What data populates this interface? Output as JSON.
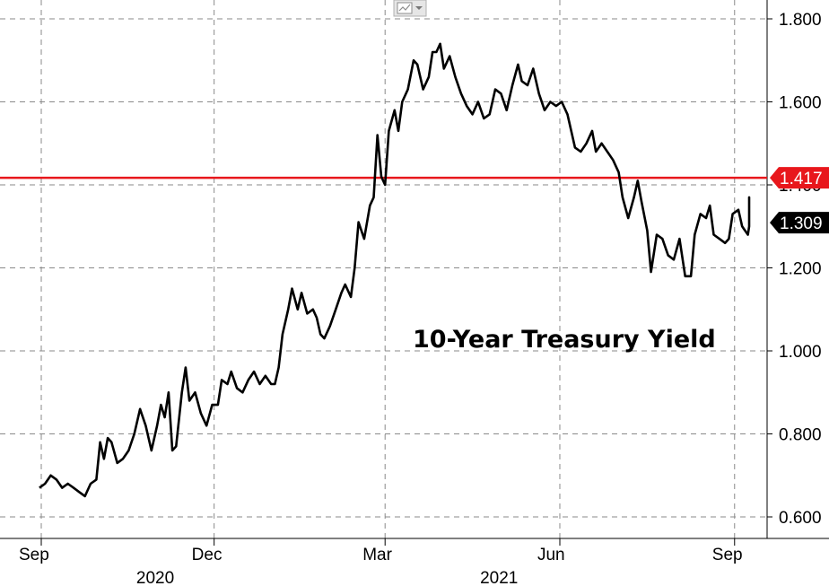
{
  "chart_data": {
    "type": "line",
    "title": "",
    "annotation": "10-Year Treasury Yield",
    "xlabel": "",
    "ylabel": "",
    "x_start": "2020-09-01",
    "x_end": "2021-09-03",
    "ylim": [
      0.55,
      1.85
    ],
    "y_ticks": [
      0.6,
      0.8,
      1.0,
      1.2,
      1.4,
      1.6,
      1.8
    ],
    "y_tick_labels": [
      "0.600",
      "0.800",
      "1.000",
      "1.200",
      "1.400",
      "1.600",
      "1.800"
    ],
    "x_ticks": [
      {
        "date": "2020-09-01",
        "label": "Sep"
      },
      {
        "date": "2020-12-01",
        "label": "Dec"
      },
      {
        "date": "2021-03-01",
        "label": "Mar"
      },
      {
        "date": "2021-06-01",
        "label": "Jun"
      },
      {
        "date": "2021-09-01",
        "label": "Sep"
      }
    ],
    "year_labels": [
      {
        "date": "2020-10-31",
        "label": "2020"
      },
      {
        "date": "2021-04-30",
        "label": "2021"
      }
    ],
    "grid": true,
    "axis_side": "right",
    "reference_line": {
      "value": 1.417,
      "label": "1.417",
      "color": "#e8171c"
    },
    "last_value": {
      "value": 1.309,
      "label": "1.309"
    },
    "colors": {
      "line": "#000000",
      "grid": "#8a8a8a",
      "reference": "#e8171c"
    },
    "series": [
      {
        "points": [
          [
            "2020-08-31",
            0.67
          ],
          [
            "2020-09-03",
            0.68
          ],
          [
            "2020-09-06",
            0.7
          ],
          [
            "2020-09-09",
            0.69
          ],
          [
            "2020-09-12",
            0.67
          ],
          [
            "2020-09-15",
            0.68
          ],
          [
            "2020-09-18",
            0.67
          ],
          [
            "2020-09-21",
            0.66
          ],
          [
            "2020-09-24",
            0.65
          ],
          [
            "2020-09-27",
            0.68
          ],
          [
            "2020-09-30",
            0.69
          ],
          [
            "2020-10-02",
            0.78
          ],
          [
            "2020-10-04",
            0.74
          ],
          [
            "2020-10-06",
            0.79
          ],
          [
            "2020-10-08",
            0.78
          ],
          [
            "2020-10-11",
            0.73
          ],
          [
            "2020-10-14",
            0.74
          ],
          [
            "2020-10-17",
            0.76
          ],
          [
            "2020-10-20",
            0.8
          ],
          [
            "2020-10-23",
            0.86
          ],
          [
            "2020-10-26",
            0.82
          ],
          [
            "2020-10-29",
            0.76
          ],
          [
            "2020-11-01",
            0.82
          ],
          [
            "2020-11-03",
            0.87
          ],
          [
            "2020-11-05",
            0.84
          ],
          [
            "2020-11-07",
            0.9
          ],
          [
            "2020-11-09",
            0.76
          ],
          [
            "2020-11-11",
            0.77
          ],
          [
            "2020-11-14",
            0.9
          ],
          [
            "2020-11-16",
            0.96
          ],
          [
            "2020-11-18",
            0.88
          ],
          [
            "2020-11-21",
            0.9
          ],
          [
            "2020-11-24",
            0.85
          ],
          [
            "2020-11-27",
            0.82
          ],
          [
            "2020-11-30",
            0.87
          ],
          [
            "2020-12-03",
            0.87
          ],
          [
            "2020-12-05",
            0.93
          ],
          [
            "2020-12-08",
            0.92
          ],
          [
            "2020-12-10",
            0.95
          ],
          [
            "2020-12-13",
            0.91
          ],
          [
            "2020-12-16",
            0.9
          ],
          [
            "2020-12-19",
            0.93
          ],
          [
            "2020-12-22",
            0.95
          ],
          [
            "2020-12-25",
            0.92
          ],
          [
            "2020-12-28",
            0.94
          ],
          [
            "2020-12-31",
            0.92
          ],
          [
            "2021-01-02",
            0.92
          ],
          [
            "2021-01-04",
            0.96
          ],
          [
            "2021-01-06",
            1.04
          ],
          [
            "2021-01-09",
            1.1
          ],
          [
            "2021-01-11",
            1.15
          ],
          [
            "2021-01-14",
            1.1
          ],
          [
            "2021-01-16",
            1.14
          ],
          [
            "2021-01-19",
            1.09
          ],
          [
            "2021-01-22",
            1.1
          ],
          [
            "2021-01-24",
            1.08
          ],
          [
            "2021-01-26",
            1.04
          ],
          [
            "2021-01-28",
            1.03
          ],
          [
            "2021-01-31",
            1.06
          ],
          [
            "2021-02-03",
            1.1
          ],
          [
            "2021-02-06",
            1.14
          ],
          [
            "2021-02-08",
            1.16
          ],
          [
            "2021-02-11",
            1.13
          ],
          [
            "2021-02-13",
            1.2
          ],
          [
            "2021-02-15",
            1.31
          ],
          [
            "2021-02-18",
            1.27
          ],
          [
            "2021-02-21",
            1.35
          ],
          [
            "2021-02-23",
            1.37
          ],
          [
            "2021-02-25",
            1.52
          ],
          [
            "2021-02-27",
            1.42
          ],
          [
            "2021-03-01",
            1.4
          ],
          [
            "2021-03-03",
            1.53
          ],
          [
            "2021-03-06",
            1.58
          ],
          [
            "2021-03-08",
            1.53
          ],
          [
            "2021-03-10",
            1.6
          ],
          [
            "2021-03-13",
            1.63
          ],
          [
            "2021-03-16",
            1.7
          ],
          [
            "2021-03-18",
            1.69
          ],
          [
            "2021-03-21",
            1.63
          ],
          [
            "2021-03-24",
            1.66
          ],
          [
            "2021-03-26",
            1.72
          ],
          [
            "2021-03-28",
            1.72
          ],
          [
            "2021-03-30",
            1.74
          ],
          [
            "2021-04-01",
            1.68
          ],
          [
            "2021-04-04",
            1.71
          ],
          [
            "2021-04-07",
            1.66
          ],
          [
            "2021-04-10",
            1.62
          ],
          [
            "2021-04-13",
            1.59
          ],
          [
            "2021-04-16",
            1.57
          ],
          [
            "2021-04-19",
            1.6
          ],
          [
            "2021-04-22",
            1.56
          ],
          [
            "2021-04-25",
            1.57
          ],
          [
            "2021-04-28",
            1.63
          ],
          [
            "2021-05-01",
            1.62
          ],
          [
            "2021-05-04",
            1.58
          ],
          [
            "2021-05-07",
            1.64
          ],
          [
            "2021-05-10",
            1.69
          ],
          [
            "2021-05-12",
            1.65
          ],
          [
            "2021-05-15",
            1.64
          ],
          [
            "2021-05-18",
            1.68
          ],
          [
            "2021-05-21",
            1.62
          ],
          [
            "2021-05-24",
            1.58
          ],
          [
            "2021-05-27",
            1.6
          ],
          [
            "2021-05-30",
            1.59
          ],
          [
            "2021-06-02",
            1.6
          ],
          [
            "2021-06-05",
            1.57
          ],
          [
            "2021-06-07",
            1.53
          ],
          [
            "2021-06-09",
            1.49
          ],
          [
            "2021-06-12",
            1.48
          ],
          [
            "2021-06-15",
            1.5
          ],
          [
            "2021-06-18",
            1.53
          ],
          [
            "2021-06-20",
            1.48
          ],
          [
            "2021-06-23",
            1.5
          ],
          [
            "2021-06-26",
            1.48
          ],
          [
            "2021-06-29",
            1.46
          ],
          [
            "2021-07-02",
            1.43
          ],
          [
            "2021-07-04",
            1.37
          ],
          [
            "2021-07-07",
            1.32
          ],
          [
            "2021-07-10",
            1.37
          ],
          [
            "2021-07-12",
            1.41
          ],
          [
            "2021-07-14",
            1.36
          ],
          [
            "2021-07-17",
            1.29
          ],
          [
            "2021-07-19",
            1.19
          ],
          [
            "2021-07-22",
            1.28
          ],
          [
            "2021-07-25",
            1.27
          ],
          [
            "2021-07-28",
            1.23
          ],
          [
            "2021-07-31",
            1.22
          ],
          [
            "2021-08-03",
            1.27
          ],
          [
            "2021-08-06",
            1.18
          ],
          [
            "2021-08-09",
            1.18
          ],
          [
            "2021-08-11",
            1.28
          ],
          [
            "2021-08-14",
            1.33
          ],
          [
            "2021-08-17",
            1.32
          ],
          [
            "2021-08-19",
            1.35
          ],
          [
            "2021-08-21",
            1.28
          ],
          [
            "2021-08-24",
            1.27
          ],
          [
            "2021-08-27",
            1.26
          ],
          [
            "2021-08-29",
            1.27
          ],
          [
            "2021-08-31",
            1.33
          ],
          [
            "2021-09-03",
            1.34
          ],
          [
            "2021-09-05",
            1.3
          ],
          [
            "2021-09-08",
            1.28
          ],
          [
            "2021-09-10",
            1.3
          ],
          [
            "2021-09-12",
            1.37
          ],
          [
            "2021-09-15",
            1.33
          ],
          [
            "2021-09-17",
            1.3
          ],
          [
            "2021-09-18",
            1.309
          ]
        ]
      }
    ]
  }
}
